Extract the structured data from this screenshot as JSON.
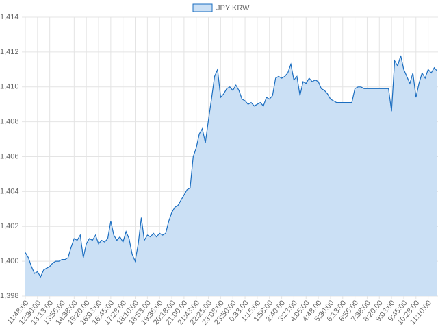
{
  "chart_data": {
    "type": "area",
    "legend": "top",
    "grid": true,
    "categories": [
      "11:48:00",
      null,
      null,
      null,
      "12:30:00",
      null,
      null,
      null,
      "13:13:00",
      null,
      null,
      null,
      "13:55:00",
      null,
      null,
      null,
      "14:38:00",
      null,
      null,
      null,
      "15:20:00",
      null,
      null,
      null,
      "16:03:00",
      null,
      null,
      null,
      "16:45:00",
      null,
      null,
      null,
      "17:28:00",
      null,
      null,
      null,
      "18:10:00",
      null,
      null,
      null,
      "18:53:00",
      null,
      null,
      null,
      "19:35:00",
      null,
      null,
      null,
      "20:18:00",
      null,
      null,
      null,
      "21:00:00",
      null,
      null,
      null,
      "21:43:00",
      null,
      null,
      null,
      "22:25:00",
      null,
      null,
      null,
      "23:08:00",
      null,
      null,
      null,
      "23:50:00",
      null,
      null,
      null,
      "0:33:00",
      null,
      null,
      null,
      "1:15:00",
      null,
      null,
      null,
      "1:58:00",
      null,
      null,
      null,
      "2:40:00",
      null,
      null,
      null,
      "3:23:00",
      null,
      null,
      null,
      "4:05:00",
      null,
      null,
      null,
      "4:48:00",
      null,
      null,
      null,
      "5:30:00",
      null,
      null,
      null,
      "6:13:00",
      null,
      null,
      null,
      "6:55:00",
      null,
      null,
      null,
      "7:38:00",
      null,
      null,
      null,
      "8:20:00",
      null,
      null,
      null,
      "9:03:00",
      null,
      null,
      null,
      "9:45:00",
      null,
      null,
      null,
      "10:28:00",
      null,
      null,
      null,
      "11:10:00",
      null,
      null,
      null
    ],
    "series": [
      {
        "name": "JPY KRW",
        "color": "#1a6dc0",
        "fill": "#cbe0f5",
        "values": [
          1400.5,
          1400.2,
          1399.7,
          1399.3,
          1399.4,
          1399.1,
          1399.5,
          1399.6,
          1399.7,
          1399.9,
          1400,
          1400,
          1400.1,
          1400.1,
          1400.2,
          1400.8,
          1401.3,
          1401.2,
          1401.5,
          1400.2,
          1401,
          1401.3,
          1401.2,
          1401.5,
          1401,
          1401.2,
          1401.1,
          1401.3,
          1402.3,
          1401.5,
          1401.2,
          1401.4,
          1401.1,
          1401.7,
          1401.3,
          1400.4,
          1400,
          1401,
          1402.5,
          1401.2,
          1401.5,
          1401.4,
          1401.6,
          1401.4,
          1401.6,
          1401.5,
          1401.6,
          1402.3,
          1402.8,
          1403.1,
          1403.2,
          1403.5,
          1403.8,
          1404.1,
          1404.2,
          1406,
          1406.5,
          1407.3,
          1407.6,
          1406.8,
          1408.1,
          1409.3,
          1410.6,
          1411,
          1409.4,
          1409.6,
          1409.9,
          1410,
          1409.8,
          1410.1,
          1409.8,
          1409.3,
          1409.2,
          1409,
          1409.1,
          1408.9,
          1409,
          1409.1,
          1408.9,
          1409.4,
          1409.3,
          1409.5,
          1410.5,
          1410.6,
          1410.5,
          1410.6,
          1410.8,
          1411.3,
          1410.4,
          1410.6,
          1409.5,
          1410.3,
          1410.2,
          1410.5,
          1410.3,
          1410.4,
          1410.3,
          1409.9,
          1409.8,
          1409.6,
          1409.3,
          1409.2,
          1409.1,
          1409.1,
          1409.1,
          1409.1,
          1409.1,
          1409.1,
          1409.9,
          1410,
          1410,
          1409.9,
          1409.9,
          1409.9,
          1409.9,
          1409.9,
          1409.9,
          1409.9,
          1409.9,
          1409.9,
          1408.6,
          1411.5,
          1411.2,
          1411.8,
          1411,
          1410.6,
          1410.2,
          1410.8,
          1409.4,
          1410.2,
          1410.8,
          1410.5,
          1411,
          1410.8,
          1411.1,
          1410.9
        ]
      }
    ],
    "ylim": [
      1398,
      1414
    ],
    "yticks": [
      {
        "value": 1398,
        "label": "1,398"
      },
      {
        "value": 1400,
        "label": "1,400"
      },
      {
        "value": 1402,
        "label": "1,402"
      },
      {
        "value": 1404,
        "label": "1,404"
      },
      {
        "value": 1406,
        "label": "1,406"
      },
      {
        "value": 1408,
        "label": "1,408"
      },
      {
        "value": 1410,
        "label": "1,410"
      },
      {
        "value": 1412,
        "label": "1,412"
      },
      {
        "value": 1414,
        "label": "1,414"
      }
    ]
  }
}
